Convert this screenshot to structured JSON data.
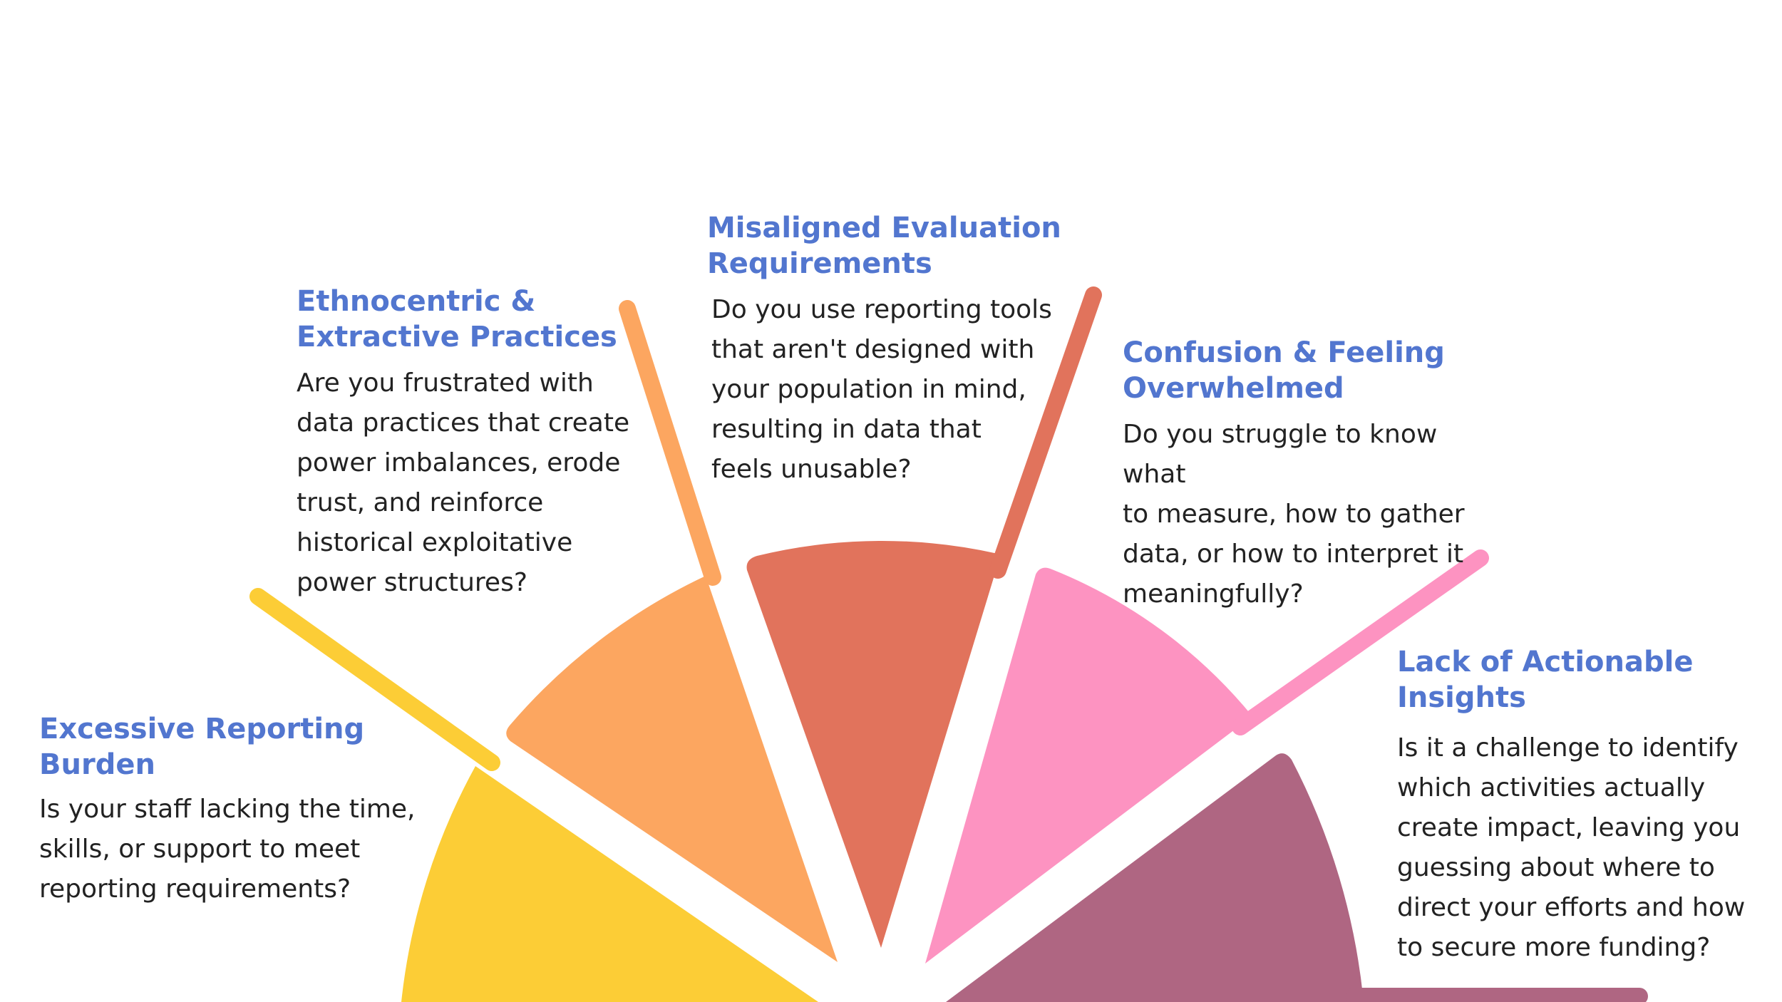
{
  "diagram": {
    "segments": [
      {
        "id": "excessive",
        "title": "Excessive Reporting Burden",
        "title_lines": [
          "Excessive Reporting",
          "Burden"
        ],
        "text_lines": [
          "Is your staff lacking the time,",
          "skills, or support to meet",
          "reporting requirements?"
        ],
        "color": "#fccd36"
      },
      {
        "id": "ethnocentric",
        "title": "Ethnocentric & Extractive Practices",
        "title_lines": [
          "Ethnocentric &",
          "Extractive Practices"
        ],
        "text_lines": [
          "Are you frustrated with",
          "data practices that create",
          "power imbalances, erode",
          "trust, and reinforce",
          "historical exploitative",
          "power structures?"
        ],
        "color": "#fca660"
      },
      {
        "id": "misaligned",
        "title": "Misaligned Evaluation Requirements",
        "title_lines": [
          "Misaligned Evaluation",
          "Requirements"
        ],
        "text_lines": [
          "Do you use reporting tools",
          "that aren't designed with",
          "your population in mind,",
          "resulting in data that",
          "feels unusable?"
        ],
        "color": "#e1735c"
      },
      {
        "id": "confusion",
        "title": "Confusion & Feeling Overwhelmed",
        "title_lines": [
          "Confusion & Feeling",
          "Overwhelmed"
        ],
        "text_lines": [
          "Do you struggle to know what",
          "to measure, how to gather",
          "data, or how to interpret it",
          "meaningfully?"
        ],
        "color": "#fd93c1"
      },
      {
        "id": "lack",
        "title": "Lack of Actionable Insights",
        "title_lines": [
          "Lack of Actionable",
          "Insights"
        ],
        "text_lines": [
          "Is it a challenge to identify",
          "which activities actually",
          "create impact, leaving you",
          "guessing about where to",
          "direct your efforts and how",
          "to secure more funding?"
        ],
        "color": "#af6682"
      }
    ]
  }
}
